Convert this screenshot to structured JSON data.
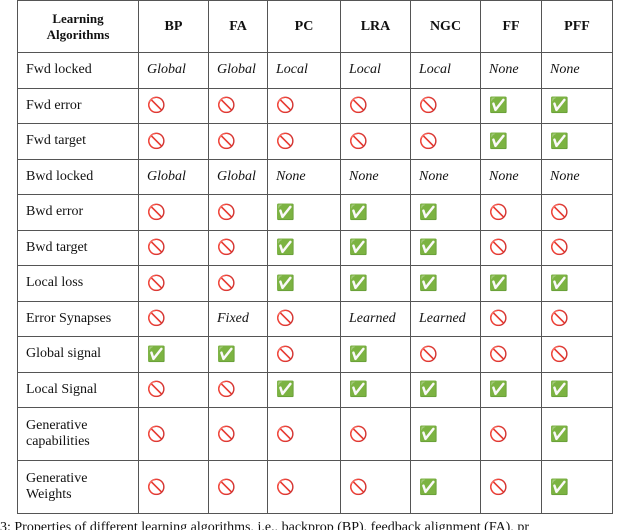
{
  "table": {
    "header": [
      "Learning Algorithms",
      "BP",
      "FA",
      "PC",
      "LRA",
      "NGC",
      "FF",
      "PFF"
    ],
    "rows": [
      [
        "Fwd locked",
        "Global",
        "Global",
        "Local",
        "Local",
        "Local",
        "None",
        "None"
      ],
      [
        "Fwd error",
        "🚫",
        "🚫",
        "🚫",
        "🚫",
        "🚫",
        "✅",
        "✅"
      ],
      [
        "Fwd target",
        "🚫",
        "🚫",
        "🚫",
        "🚫",
        "🚫",
        "✅",
        "✅"
      ],
      [
        "Bwd locked",
        "Global",
        "Global",
        "None",
        "None",
        "None",
        "None",
        "None"
      ],
      [
        "Bwd error",
        "🚫",
        "🚫",
        "✅",
        "✅",
        "✅",
        "🚫",
        "🚫"
      ],
      [
        "Bwd target",
        "🚫",
        "🚫",
        "✅",
        "✅",
        "✅",
        "🚫",
        "🚫"
      ],
      [
        "Local loss",
        "🚫",
        "🚫",
        "✅",
        "✅",
        "✅",
        "✅",
        "✅"
      ],
      [
        "Error Synapses",
        "🚫",
        "Fixed",
        "🚫",
        "Learned",
        "Learned",
        "🚫",
        "🚫"
      ],
      [
        "Global signal",
        "✅",
        "✅",
        "🚫",
        "✅",
        "🚫",
        "🚫",
        "🚫"
      ],
      [
        "Local Signal",
        "🚫",
        "🚫",
        "✅",
        "✅",
        "✅",
        "✅",
        "✅"
      ],
      [
        "Generative capabilities",
        "🚫",
        "🚫",
        "🚫",
        "🚫",
        "✅",
        "🚫",
        "✅"
      ],
      [
        "Generative Weights",
        "🚫",
        "🚫",
        "🚫",
        "🚫",
        "✅",
        "🚫",
        "✅"
      ]
    ]
  },
  "caption": "3: Properties of different learning algorithms, i.e., backprop (BP), feedback alignment (FA), pr"
}
